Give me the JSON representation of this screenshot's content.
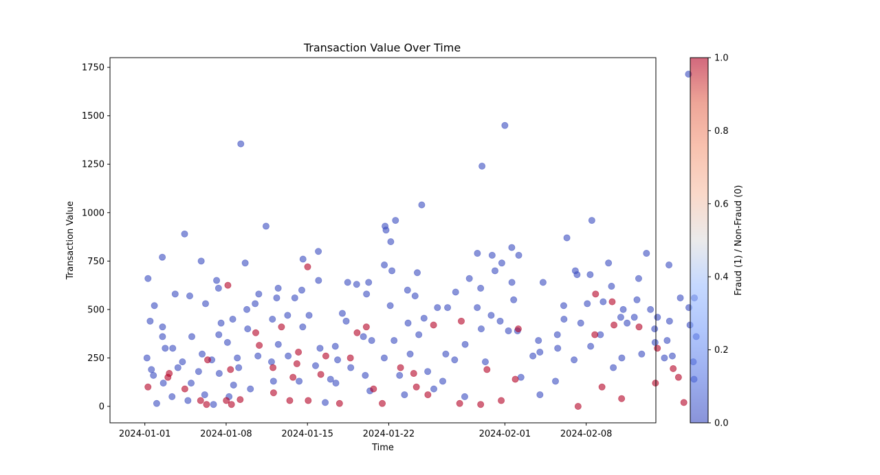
{
  "chart_data": {
    "type": "scatter",
    "title": "Transaction Value Over Time",
    "xlabel": "Time",
    "ylabel": "Transaction Value",
    "x_tick_labels": [
      "2024-01-01",
      "2024-01-08",
      "2024-01-15",
      "2024-01-22",
      "2024-02-01",
      "2024-02-08"
    ],
    "x_ticks": [
      "2024-01-01",
      "2024-01-08",
      "2024-01-15",
      "2024-01-22",
      "2024-02-01",
      "2024-02-08"
    ],
    "xlim": [
      "2023-12-29",
      "2024-02-14"
    ],
    "y_ticks": [
      0,
      250,
      500,
      750,
      1000,
      1250,
      1500,
      1750
    ],
    "ylim": [
      -85,
      1800
    ],
    "grid": false,
    "colorbar": {
      "label": "Fraud (1) / Non-Fraud (0)",
      "ticks": [
        "0.0",
        "0.2",
        "0.4",
        "0.6",
        "0.8",
        "1.0"
      ],
      "range": [
        0,
        1
      ],
      "colormap": "coolwarm",
      "low_color": "#3b4cc0",
      "mid_color": "#dddddd",
      "high_color": "#b40426"
    },
    "point_alpha": 0.6,
    "points_nonfraud": [
      [
        "2024-01-01",
        250
      ],
      [
        "2024-01-01",
        160
      ],
      [
        "2024-01-01",
        190
      ],
      [
        "2024-01-01",
        440
      ],
      [
        "2024-01-01",
        660
      ],
      [
        "2024-01-01",
        520
      ],
      [
        "2024-01-02",
        300
      ],
      [
        "2024-01-02",
        770
      ],
      [
        "2024-01-02",
        410
      ],
      [
        "2024-01-02",
        360
      ],
      [
        "2024-01-02",
        15
      ],
      [
        "2024-01-02",
        120
      ],
      [
        "2024-01-03",
        580
      ],
      [
        "2024-01-03",
        300
      ],
      [
        "2024-01-03",
        200
      ],
      [
        "2024-01-03",
        50
      ],
      [
        "2024-01-04",
        890
      ],
      [
        "2024-01-04",
        230
      ],
      [
        "2024-01-04",
        120
      ],
      [
        "2024-01-04",
        30
      ],
      [
        "2024-01-04",
        570
      ],
      [
        "2024-01-05",
        750
      ],
      [
        "2024-01-05",
        360
      ],
      [
        "2024-01-05",
        180
      ],
      [
        "2024-01-05",
        270
      ],
      [
        "2024-01-06",
        530
      ],
      [
        "2024-01-06",
        240
      ],
      [
        "2024-01-06",
        60
      ],
      [
        "2024-01-06",
        10
      ],
      [
        "2024-01-07",
        650
      ],
      [
        "2024-01-07",
        610
      ],
      [
        "2024-01-07",
        430
      ],
      [
        "2024-01-07",
        370
      ],
      [
        "2024-01-07",
        170
      ],
      [
        "2024-01-08",
        450
      ],
      [
        "2024-01-08",
        330
      ],
      [
        "2024-01-08",
        110
      ],
      [
        "2024-01-08",
        250
      ],
      [
        "2024-01-08",
        50
      ],
      [
        "2024-01-09",
        1355
      ],
      [
        "2024-01-09",
        500
      ],
      [
        "2024-01-09",
        400
      ],
      [
        "2024-01-09",
        740
      ],
      [
        "2024-01-09",
        200
      ],
      [
        "2024-01-10",
        530
      ],
      [
        "2024-01-10",
        580
      ],
      [
        "2024-01-10",
        260
      ],
      [
        "2024-01-10",
        90
      ],
      [
        "2024-01-11",
        930
      ],
      [
        "2024-01-11",
        450
      ],
      [
        "2024-01-11",
        230
      ],
      [
        "2024-01-12",
        610
      ],
      [
        "2024-01-12",
        560
      ],
      [
        "2024-01-12",
        320
      ],
      [
        "2024-01-12",
        130
      ],
      [
        "2024-01-13",
        560
      ],
      [
        "2024-01-13",
        470
      ],
      [
        "2024-01-13",
        260
      ],
      [
        "2024-01-14",
        760
      ],
      [
        "2024-01-14",
        410
      ],
      [
        "2024-01-14",
        600
      ],
      [
        "2024-01-14",
        130
      ],
      [
        "2024-01-15",
        800
      ],
      [
        "2024-01-15",
        650
      ],
      [
        "2024-01-15",
        470
      ],
      [
        "2024-01-15",
        210
      ],
      [
        "2024-01-16",
        300
      ],
      [
        "2024-01-16",
        140
      ],
      [
        "2024-01-16",
        20
      ],
      [
        "2024-01-17",
        310
      ],
      [
        "2024-01-17",
        240
      ],
      [
        "2024-01-17",
        120
      ],
      [
        "2024-01-18",
        640
      ],
      [
        "2024-01-18",
        480
      ],
      [
        "2024-01-18",
        200
      ],
      [
        "2024-01-18",
        440
      ],
      [
        "2024-01-19",
        630
      ],
      [
        "2024-01-19",
        360
      ],
      [
        "2024-01-19",
        160
      ],
      [
        "2024-01-20",
        640
      ],
      [
        "2024-01-20",
        580
      ],
      [
        "2024-01-20",
        340
      ],
      [
        "2024-01-20",
        80
      ],
      [
        "2024-01-21",
        930
      ],
      [
        "2024-01-21",
        910
      ],
      [
        "2024-01-21",
        730
      ],
      [
        "2024-01-21",
        250
      ],
      [
        "2024-01-22",
        520
      ],
      [
        "2024-01-22",
        340
      ],
      [
        "2024-01-22",
        960
      ],
      [
        "2024-01-22",
        850
      ],
      [
        "2024-01-22",
        700
      ],
      [
        "2024-01-22",
        160
      ],
      [
        "2024-01-23",
        600
      ],
      [
        "2024-01-23",
        430
      ],
      [
        "2024-01-23",
        270
      ],
      [
        "2024-01-23",
        60
      ],
      [
        "2024-01-24",
        1040
      ],
      [
        "2024-01-24",
        690
      ],
      [
        "2024-01-24",
        570
      ],
      [
        "2024-01-24",
        370
      ],
      [
        "2024-01-25",
        455
      ],
      [
        "2024-01-25",
        180
      ],
      [
        "2024-01-25",
        90
      ],
      [
        "2024-01-26",
        510
      ],
      [
        "2024-01-26",
        270
      ],
      [
        "2024-01-26",
        130
      ],
      [
        "2024-01-27",
        590
      ],
      [
        "2024-01-27",
        510
      ],
      [
        "2024-01-27",
        240
      ],
      [
        "2024-01-28",
        660
      ],
      [
        "2024-01-28",
        320
      ],
      [
        "2024-01-28",
        50
      ],
      [
        "2024-01-29",
        790
      ],
      [
        "2024-01-29",
        510
      ],
      [
        "2024-01-29",
        400
      ],
      [
        "2024-01-29",
        610
      ],
      [
        "2024-01-30",
        1240
      ],
      [
        "2024-01-30",
        470
      ],
      [
        "2024-01-30",
        780
      ],
      [
        "2024-01-30",
        230
      ],
      [
        "2024-01-31",
        700
      ],
      [
        "2024-01-31",
        1450
      ],
      [
        "2024-01-31",
        440
      ],
      [
        "2024-01-31",
        740
      ],
      [
        "2024-02-01",
        640
      ],
      [
        "2024-02-01",
        550
      ],
      [
        "2024-02-01",
        820
      ],
      [
        "2024-02-01",
        390
      ],
      [
        "2024-02-02",
        780
      ],
      [
        "2024-02-02",
        390
      ],
      [
        "2024-02-02",
        150
      ],
      [
        "2024-02-03",
        340
      ],
      [
        "2024-02-03",
        260
      ],
      [
        "2024-02-04",
        640
      ],
      [
        "2024-02-04",
        280
      ],
      [
        "2024-02-04",
        60
      ],
      [
        "2024-02-05",
        300
      ],
      [
        "2024-02-05",
        370
      ],
      [
        "2024-02-05",
        130
      ],
      [
        "2024-02-06",
        870
      ],
      [
        "2024-02-06",
        520
      ],
      [
        "2024-02-06",
        450
      ],
      [
        "2024-02-06",
        240
      ],
      [
        "2024-02-07",
        700
      ],
      [
        "2024-02-07",
        680
      ],
      [
        "2024-02-07",
        430
      ],
      [
        "2024-02-08",
        960
      ],
      [
        "2024-02-08",
        680
      ],
      [
        "2024-02-08",
        530
      ],
      [
        "2024-02-08",
        310
      ],
      [
        "2024-02-09",
        740
      ],
      [
        "2024-02-09",
        540
      ],
      [
        "2024-02-09",
        370
      ],
      [
        "2024-02-10",
        620
      ],
      [
        "2024-02-10",
        460
      ],
      [
        "2024-02-10",
        200
      ],
      [
        "2024-02-11",
        500
      ],
      [
        "2024-02-11",
        430
      ],
      [
        "2024-02-11",
        250
      ],
      [
        "2024-02-12",
        660
      ],
      [
        "2024-02-12",
        550
      ],
      [
        "2024-02-12",
        460
      ],
      [
        "2024-02-12",
        270
      ],
      [
        "2024-02-13",
        790
      ],
      [
        "2024-02-13",
        500
      ],
      [
        "2024-02-13",
        400
      ],
      [
        "2024-02-13",
        330
      ],
      [
        "2024-02-14",
        460
      ],
      [
        "2024-02-14",
        340
      ],
      [
        "2024-02-14",
        250
      ],
      [
        "2024-02-15",
        730
      ],
      [
        "2024-02-15",
        440
      ],
      [
        "2024-02-15",
        260
      ],
      [
        "2024-02-16",
        1715
      ],
      [
        "2024-02-16",
        560
      ],
      [
        "2024-02-16",
        510
      ],
      [
        "2024-02-16",
        420
      ],
      [
        "2024-02-17",
        560
      ],
      [
        "2024-02-17",
        360
      ],
      [
        "2024-02-17",
        230
      ],
      [
        "2024-02-17",
        140
      ]
    ],
    "points_fraud": [
      [
        "2024-01-01",
        100
      ],
      [
        "2024-01-02",
        150
      ],
      [
        "2024-01-03",
        170
      ],
      [
        "2024-01-04",
        90
      ],
      [
        "2024-01-05",
        30
      ],
      [
        "2024-01-06",
        240
      ],
      [
        "2024-01-06",
        10
      ],
      [
        "2024-01-08",
        625
      ],
      [
        "2024-01-08",
        190
      ],
      [
        "2024-01-08",
        10
      ],
      [
        "2024-01-08",
        30
      ],
      [
        "2024-01-09",
        35
      ],
      [
        "2024-01-10",
        380
      ],
      [
        "2024-01-10",
        315
      ],
      [
        "2024-01-12",
        410
      ],
      [
        "2024-01-12",
        200
      ],
      [
        "2024-01-12",
        70
      ],
      [
        "2024-01-13",
        150
      ],
      [
        "2024-01-13",
        30
      ],
      [
        "2024-01-14",
        280
      ],
      [
        "2024-01-14",
        220
      ],
      [
        "2024-01-15",
        30
      ],
      [
        "2024-01-15",
        720
      ],
      [
        "2024-01-16",
        260
      ],
      [
        "2024-01-16",
        165
      ],
      [
        "2024-01-17",
        15
      ],
      [
        "2024-01-18",
        250
      ],
      [
        "2024-01-19",
        380
      ],
      [
        "2024-01-20",
        410
      ],
      [
        "2024-01-20",
        90
      ],
      [
        "2024-01-21",
        15
      ],
      [
        "2024-01-23",
        200
      ],
      [
        "2024-01-24",
        170
      ],
      [
        "2024-01-24",
        100
      ],
      [
        "2024-01-25",
        420
      ],
      [
        "2024-01-25",
        60
      ],
      [
        "2024-01-28",
        440
      ],
      [
        "2024-01-28",
        15
      ],
      [
        "2024-01-29",
        10
      ],
      [
        "2024-01-30",
        190
      ],
      [
        "2024-01-31",
        30
      ],
      [
        "2024-02-01",
        140
      ],
      [
        "2024-02-02",
        400
      ],
      [
        "2024-02-07",
        0
      ],
      [
        "2024-02-08",
        580
      ],
      [
        "2024-02-08",
        370
      ],
      [
        "2024-02-09",
        100
      ],
      [
        "2024-02-10",
        420
      ],
      [
        "2024-02-10",
        540
      ],
      [
        "2024-02-11",
        40
      ],
      [
        "2024-02-12",
        410
      ],
      [
        "2024-02-13",
        120
      ],
      [
        "2024-02-14",
        300
      ],
      [
        "2024-02-15",
        195
      ],
      [
        "2024-02-15",
        150
      ],
      [
        "2024-02-16",
        20
      ]
    ]
  }
}
